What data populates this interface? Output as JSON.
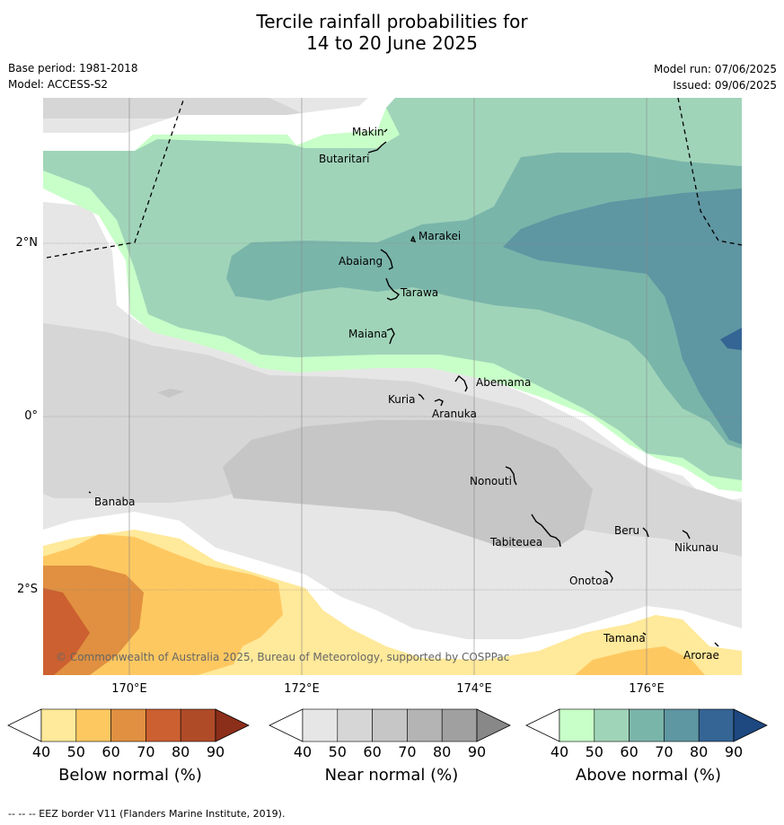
{
  "title_line1": "Tercile rainfall probabilities for",
  "title_line2": "14 to 20 June 2025",
  "base_period": "Base period: 1981-2018",
  "model": "Model: ACCESS-S2",
  "model_run": "Model run: 07/06/2025",
  "issued": "Issued: 09/06/2025",
  "copyright": "© Commonwealth of Australia 2025, Bureau of Meteorology, supported by COSPPac",
  "footnote": "--  --  -- EEZ border V11 (Flanders Marine Institute, 2019).",
  "lat_labels": [
    "2°N",
    "0°",
    "2°S"
  ],
  "lon_labels": [
    "170°E",
    "172°E",
    "174°E",
    "176°E"
  ],
  "places": {
    "makin": "Makin",
    "butaritari": "Butaritari",
    "marakei": "Marakei",
    "abaiang": "Abaiang",
    "tarawa": "Tarawa",
    "maiana": "Maiana",
    "abemama": "Abemama",
    "kuria": "Kuria",
    "aranuka": "Aranuka",
    "banaba": "Banaba",
    "nonouti": "Nonouti",
    "beru": "Beru",
    "tabiteuea": "Tabiteuea",
    "nikunau": "Nikunau",
    "onotoa": "Onotoa",
    "tamana": "Tamana",
    "arorae": "Arorae"
  },
  "colorbars": [
    {
      "label": "Below normal (%)",
      "ticks": [
        "40",
        "50",
        "60",
        "70",
        "80",
        "90"
      ],
      "colors": [
        "#ffe99a",
        "#fec861",
        "#e09040",
        "#cc6030",
        "#b04b28",
        "#8b2e1a"
      ]
    },
    {
      "label": "Near normal (%)",
      "ticks": [
        "40",
        "50",
        "60",
        "70",
        "80",
        "90"
      ],
      "colors": [
        "#e6e6e6",
        "#d6d6d6",
        "#c6c6c6",
        "#b4b4b4",
        "#a0a0a0",
        "#888888"
      ]
    },
    {
      "label": "Above normal (%)",
      "ticks": [
        "40",
        "50",
        "60",
        "70",
        "80",
        "90"
      ],
      "colors": [
        "#c8ffc8",
        "#a0d4b9",
        "#7ab5aa",
        "#5e96a2",
        "#356594",
        "#1d4880"
      ]
    }
  ]
}
